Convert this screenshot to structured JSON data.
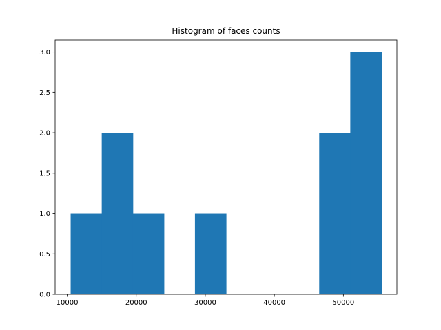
{
  "chart_data": {
    "type": "bar",
    "title": "Histogram of faces counts",
    "xlabel": "",
    "ylabel": "",
    "bins": [
      {
        "x0": 10500,
        "x1": 15000,
        "count": 1
      },
      {
        "x0": 15000,
        "x1": 19500,
        "count": 2
      },
      {
        "x0": 19500,
        "x1": 24000,
        "count": 1
      },
      {
        "x0": 24000,
        "x1": 28500,
        "count": 0
      },
      {
        "x0": 28500,
        "x1": 33000,
        "count": 1
      },
      {
        "x0": 33000,
        "x1": 37500,
        "count": 0
      },
      {
        "x0": 37500,
        "x1": 42000,
        "count": 0
      },
      {
        "x0": 42000,
        "x1": 46500,
        "count": 0
      },
      {
        "x0": 46500,
        "x1": 51000,
        "count": 2
      },
      {
        "x0": 51000,
        "x1": 55500,
        "count": 3
      }
    ],
    "xlim": [
      8250,
      57750
    ],
    "ylim": [
      0,
      3.15
    ],
    "xticks": [
      10000,
      20000,
      30000,
      40000,
      50000
    ],
    "xtick_labels": [
      "10000",
      "20000",
      "30000",
      "40000",
      "50000"
    ],
    "yticks": [
      0,
      0.5,
      1,
      1.5,
      2,
      2.5,
      3
    ],
    "ytick_labels": [
      "0.0",
      "0.5",
      "1.0",
      "1.5",
      "2.0",
      "2.5",
      "3.0"
    ],
    "grid": false,
    "bar_color": "#1f77b4"
  }
}
